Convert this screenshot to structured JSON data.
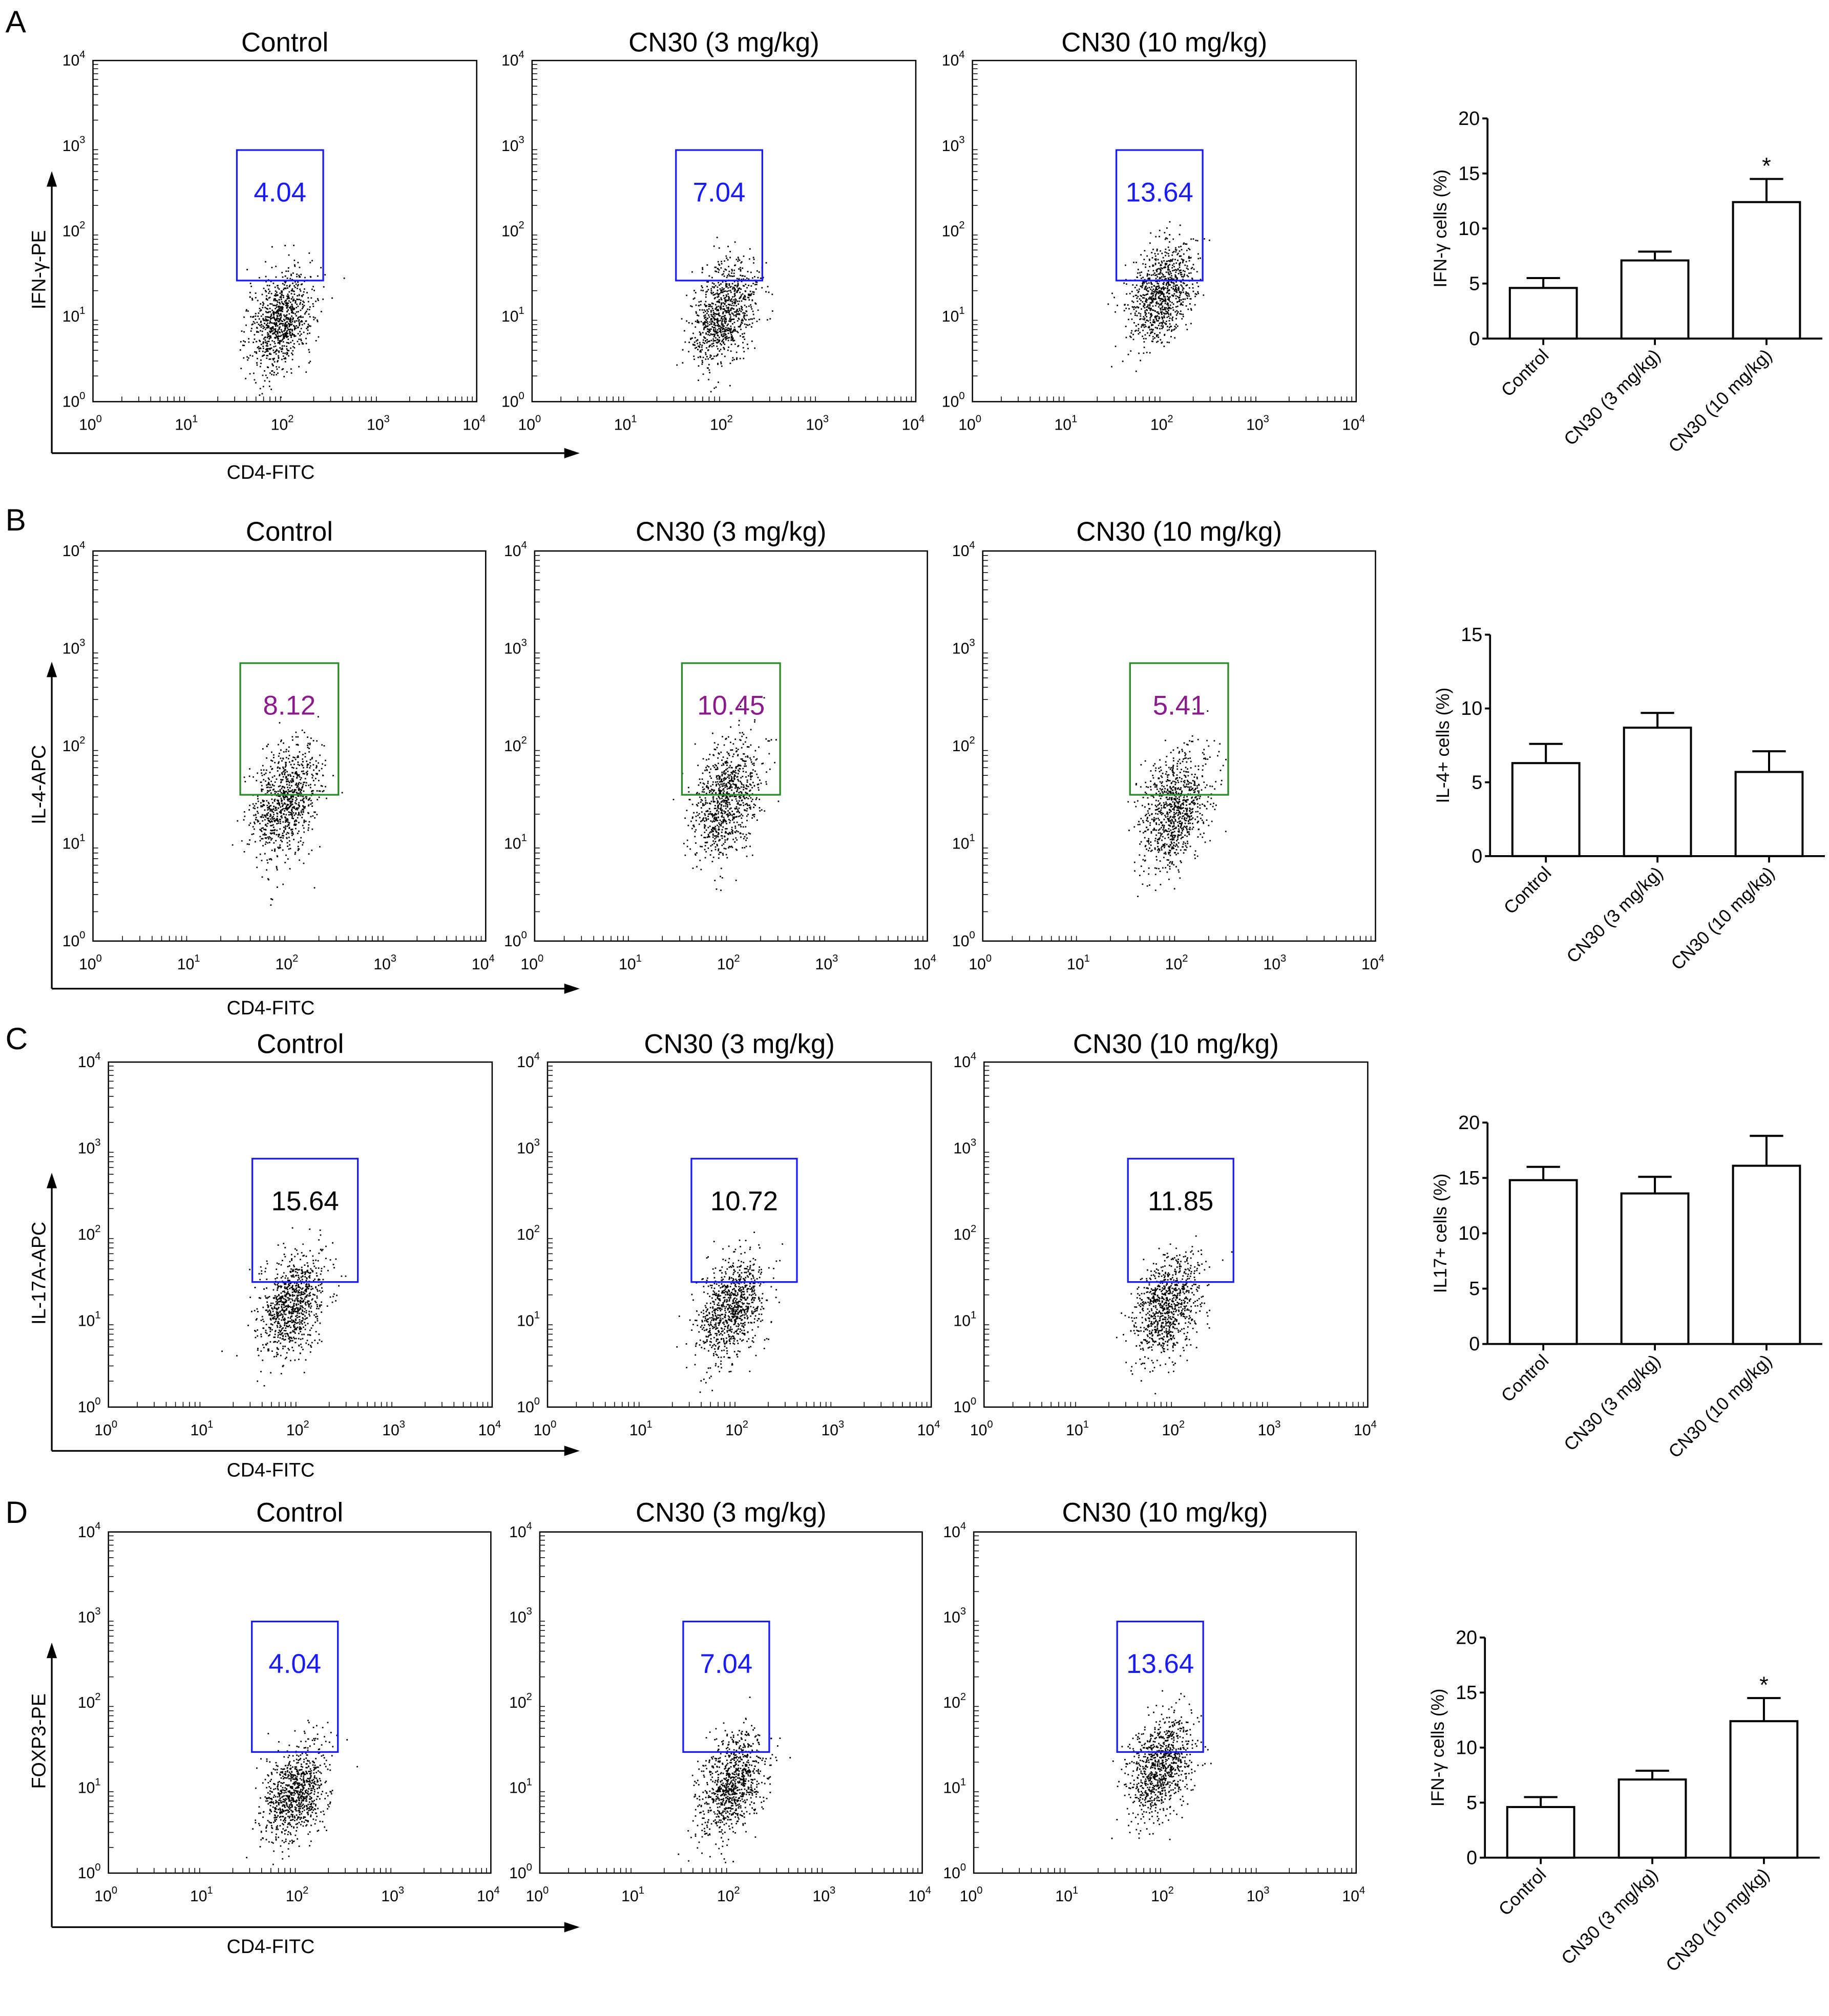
{
  "groups": [
    "Control",
    "CN30 (3 mg/kg)",
    "CN30 (10 mg/kg)"
  ],
  "axis_ticks": [
    "10",
    "10",
    "10",
    "10",
    "10"
  ],
  "axis_exponents": [
    "0",
    "1",
    "2",
    "3",
    "4"
  ],
  "colors": {
    "blue": "#1a1aff",
    "green": "#2a8a2a",
    "purple": "#8b1a8b",
    "black": "#000000"
  },
  "panels": [
    {
      "letter": "A",
      "ylabel": "IFN-γ-PE",
      "xlabel": "CD4-FITC",
      "gate_values": [
        "4.04",
        "7.04",
        "13.64"
      ],
      "gate_color": "blue",
      "label_color": "blue"
    },
    {
      "letter": "B",
      "ylabel": "IL-4-APC",
      "xlabel": "CD4-FITC",
      "gate_values": [
        "8.12",
        "10.45",
        "5.41"
      ],
      "gate_color": "green",
      "label_color": "purple"
    },
    {
      "letter": "C",
      "ylabel": "IL-17A-APC",
      "xlabel": "CD4-FITC",
      "gate_values": [
        "15.64",
        "10.72",
        "11.85"
      ],
      "gate_color": "blue",
      "label_color": "black"
    },
    {
      "letter": "D",
      "ylabel": "FOXP3-PE",
      "xlabel": "CD4-FITC",
      "gate_values": [
        "4.04",
        "7.04",
        "13.64"
      ],
      "gate_color": "blue",
      "label_color": "blue"
    }
  ],
  "chart_data": [
    {
      "type": "bar",
      "title": "",
      "ylabel": "IFN-γ  cells (%)",
      "categories": [
        "Control",
        "CN30 (3 mg/kg)",
        "CN30 (10 mg/kg)"
      ],
      "values": [
        4.6,
        7.1,
        12.4
      ],
      "errors": [
        0.9,
        0.8,
        2.1
      ],
      "significance": [
        "",
        "",
        "*"
      ],
      "ylim": [
        0,
        20
      ],
      "yticks": [
        "0",
        "5",
        "10",
        "15",
        "20"
      ]
    },
    {
      "type": "bar",
      "title": "",
      "ylabel": "IL-4+ cells (%)",
      "categories": [
        "Control",
        "CN30 (3 mg/kg)",
        "CN30 (10 mg/kg)"
      ],
      "values": [
        6.3,
        8.7,
        5.7
      ],
      "errors": [
        1.3,
        1.0,
        1.4
      ],
      "significance": [
        "",
        "",
        ""
      ],
      "ylim": [
        0,
        15
      ],
      "yticks": [
        "0",
        "5",
        "10",
        "15"
      ]
    },
    {
      "type": "bar",
      "title": "",
      "ylabel": "IL17+ cells (%)",
      "categories": [
        "Control",
        "CN30 (3 mg/kg)",
        "CN30 (10 mg/kg)"
      ],
      "values": [
        14.8,
        13.6,
        16.1
      ],
      "errors": [
        1.2,
        1.5,
        2.7
      ],
      "significance": [
        "",
        "",
        ""
      ],
      "ylim": [
        0,
        20
      ],
      "yticks": [
        "0",
        "5",
        "10",
        "15",
        "20"
      ]
    },
    {
      "type": "bar",
      "title": "",
      "ylabel": "IFN-γ  cells (%)",
      "categories": [
        "Control",
        "CN30 (3 mg/kg)",
        "CN30 (10 mg/kg)"
      ],
      "values": [
        4.6,
        7.1,
        12.4
      ],
      "errors": [
        0.9,
        0.8,
        2.1
      ],
      "significance": [
        "",
        "",
        "*"
      ],
      "ylim": [
        0,
        20
      ],
      "yticks": [
        "0",
        "5",
        "10",
        "15",
        "20"
      ]
    }
  ]
}
